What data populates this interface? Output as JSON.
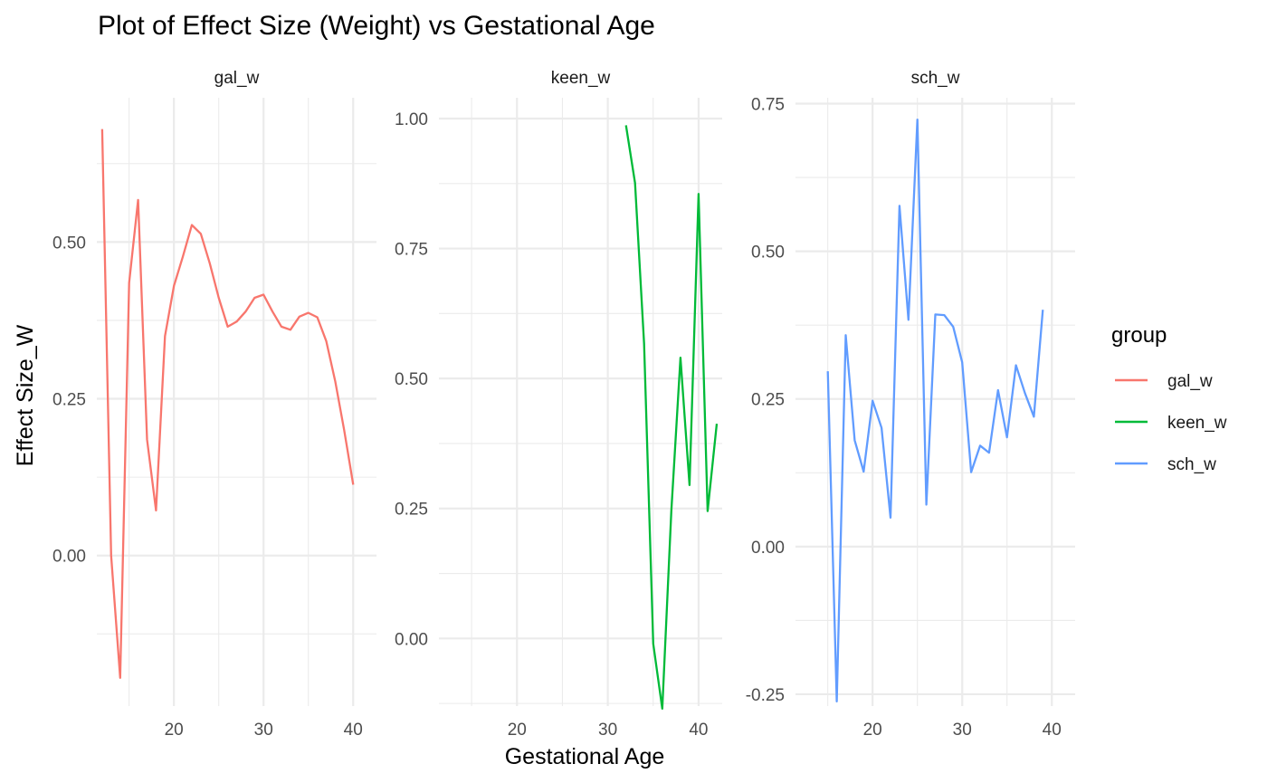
{
  "chart_data": {
    "type": "line",
    "title": "Plot of Effect Size (Weight) vs Gestational Age",
    "xlabel": "Gestational Age",
    "ylabel": "Effect Size_W",
    "legend": {
      "title": "group",
      "position": "right"
    },
    "grid": true,
    "panels": [
      {
        "name": "gal_w",
        "color": "#F8766D",
        "xlim": [
          11.4,
          42.6
        ],
        "ylim": [
          -0.24,
          0.73
        ],
        "x_ticks": [
          20,
          30,
          40
        ],
        "x_tick_labels": [
          "20",
          "30",
          "40"
        ],
        "y_ticks": [
          0,
          0.25,
          0.5
        ],
        "y_tick_labels": [
          "0.00",
          "0.25",
          "0.50"
        ],
        "x": [
          12,
          13,
          14,
          15,
          16,
          17,
          18,
          19,
          20,
          21,
          22,
          23,
          24,
          25,
          26,
          27,
          28,
          29,
          30,
          31,
          32,
          33,
          34,
          35,
          36,
          37,
          38,
          39,
          40
        ],
        "y": [
          0.68,
          0.0,
          -0.195,
          0.435,
          0.567,
          0.185,
          0.072,
          0.35,
          0.43,
          0.477,
          0.527,
          0.513,
          0.466,
          0.411,
          0.365,
          0.373,
          0.389,
          0.411,
          0.416,
          0.389,
          0.365,
          0.36,
          0.381,
          0.387,
          0.38,
          0.342,
          0.278,
          0.2,
          0.113
        ]
      },
      {
        "name": "keen_w",
        "color": "#00BA38",
        "xlim": [
          11.4,
          42.6
        ],
        "ylim": [
          -0.13,
          1.04
        ],
        "x_ticks": [
          20,
          30,
          40
        ],
        "x_tick_labels": [
          "20",
          "30",
          "40"
        ],
        "y_ticks": [
          0,
          0.25,
          0.5,
          0.75,
          1.0
        ],
        "y_tick_labels": [
          "0.00",
          "0.25",
          "0.50",
          "0.75",
          "1.00"
        ],
        "x": [
          32,
          33,
          34,
          35,
          36,
          37,
          38,
          39,
          40,
          41,
          42
        ],
        "y": [
          0.987,
          0.876,
          0.567,
          -0.01,
          -0.135,
          0.245,
          0.54,
          0.295,
          0.855,
          0.245,
          0.413
        ]
      },
      {
        "name": "sch_w",
        "color": "#619CFF",
        "xlim": [
          11.4,
          42.6
        ],
        "ylim": [
          -0.27,
          0.76
        ],
        "x_ticks": [
          20,
          30,
          40
        ],
        "x_tick_labels": [
          "20",
          "30",
          "40"
        ],
        "y_ticks": [
          -0.25,
          0,
          0.25,
          0.5,
          0.75
        ],
        "y_tick_labels": [
          "-0.25",
          "0.00",
          "0.25",
          "0.50",
          "0.75"
        ],
        "x": [
          15,
          16,
          17,
          18,
          19,
          20,
          21,
          22,
          23,
          24,
          25,
          26,
          27,
          28,
          29,
          30,
          31,
          32,
          33,
          34,
          35,
          36,
          37,
          38,
          39
        ],
        "y": [
          0.297,
          -0.262,
          0.358,
          0.18,
          0.127,
          0.247,
          0.201,
          0.049,
          0.577,
          0.384,
          0.723,
          0.071,
          0.393,
          0.392,
          0.372,
          0.312,
          0.126,
          0.171,
          0.159,
          0.265,
          0.185,
          0.307,
          0.26,
          0.22,
          0.401
        ]
      }
    ],
    "legend_entries": [
      {
        "label": "gal_w",
        "color": "#F8766D"
      },
      {
        "label": "keen_w",
        "color": "#00BA38"
      },
      {
        "label": "sch_w",
        "color": "#619CFF"
      }
    ]
  }
}
